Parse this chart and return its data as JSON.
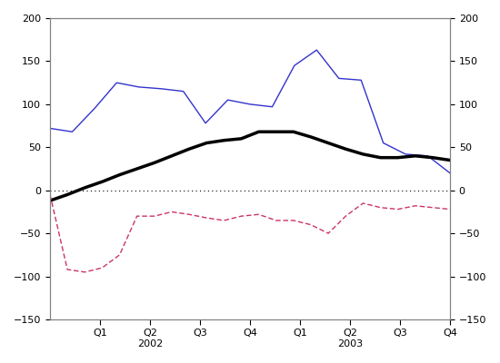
{
  "ylim": [
    -150,
    200
  ],
  "yticks": [
    -150,
    -100,
    -50,
    0,
    50,
    100,
    150,
    200
  ],
  "x_labels": [
    "Q1",
    "Q2",
    "Q3",
    "Q4",
    "Q1",
    "Q2",
    "Q3",
    "Q4"
  ],
  "x_year_labels": [
    "2002",
    "2003"
  ],
  "blue_line": [
    72,
    68,
    95,
    125,
    120,
    118,
    115,
    78,
    105,
    100,
    97,
    145,
    163,
    130,
    128,
    55,
    42,
    40,
    20
  ],
  "black_line": [
    -12,
    -5,
    3,
    10,
    18,
    25,
    32,
    40,
    48,
    55,
    58,
    60,
    68,
    68,
    68,
    62,
    55,
    48,
    42,
    38,
    38,
    40,
    38,
    35
  ],
  "red_line": [
    -5,
    -92,
    -95,
    -90,
    -75,
    -30,
    -30,
    -25,
    -28,
    -32,
    -35,
    -30,
    -28,
    -35,
    -35,
    -40,
    -50,
    -30,
    -15,
    -20,
    -22,
    -18,
    -20,
    -22
  ],
  "blue_color": "#3333cc",
  "black_color": "#000000",
  "red_color": "#cc3366",
  "background_color": "#ffffff"
}
